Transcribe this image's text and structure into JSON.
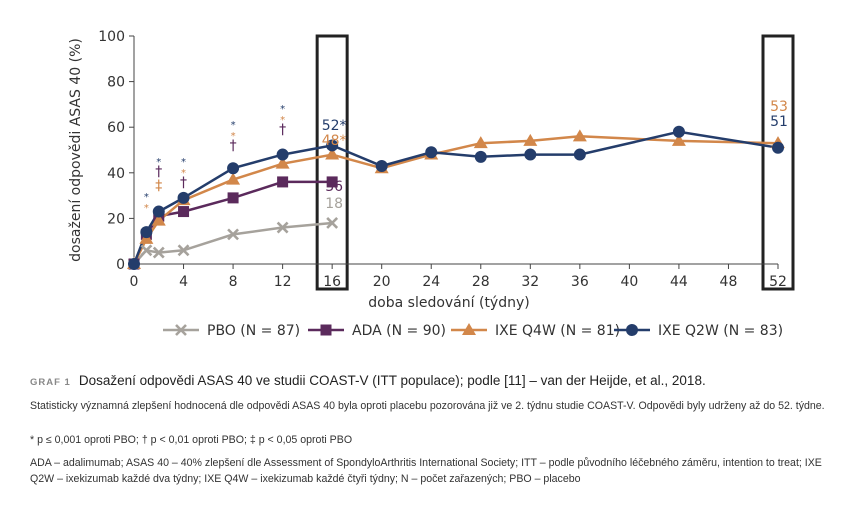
{
  "chart_data": {
    "type": "line",
    "ylabel": "dosažení odpovědi ASAS 40 (%)",
    "xlabel": "doba sledování (týdny)",
    "ylim": [
      0,
      100
    ],
    "yticks": [
      0,
      20,
      40,
      60,
      80,
      100
    ],
    "xticks": [
      0,
      4,
      8,
      12,
      16,
      20,
      24,
      28,
      32,
      36,
      40,
      44,
      48,
      52
    ],
    "grid": false,
    "legend_position": "bottom",
    "highlight_weeks": [
      16,
      52
    ],
    "series": [
      {
        "name": "PBO (N = 87)",
        "color": "#a6a29c",
        "marker": "x",
        "x": [
          0,
          1,
          2,
          4,
          8,
          12,
          16
        ],
        "y": [
          0,
          6,
          5,
          6,
          13,
          16,
          18
        ]
      },
      {
        "name": "ADA (N = 90)",
        "color": "#5b2a5c",
        "marker": "square",
        "x": [
          0,
          1,
          2,
          4,
          8,
          12,
          16
        ],
        "y": [
          0,
          13,
          21,
          23,
          29,
          36,
          36
        ]
      },
      {
        "name": "IXE Q4W (N = 81)",
        "color": "#d2874a",
        "marker": "triangle",
        "x": [
          0,
          1,
          2,
          4,
          8,
          12,
          16,
          20,
          24,
          28,
          32,
          36,
          44,
          52
        ],
        "y": [
          0,
          11,
          19,
          28,
          37,
          44,
          48,
          42,
          48,
          53,
          54,
          56,
          54,
          53
        ]
      },
      {
        "name": "IXE Q2W (N = 83)",
        "color": "#243d6b",
        "marker": "circle",
        "x": [
          0,
          1,
          2,
          4,
          8,
          12,
          16,
          20,
          24,
          28,
          32,
          36,
          44,
          52
        ],
        "y": [
          0,
          14,
          23,
          29,
          42,
          48,
          52,
          43,
          49,
          47,
          48,
          48,
          58,
          51
        ]
      }
    ],
    "data_labels": [
      {
        "text": "52*",
        "x": 16,
        "y": 52,
        "color": "#243d6b"
      },
      {
        "text": "48*",
        "x": 16,
        "y": 48,
        "color": "#d2874a"
      },
      {
        "text": "36",
        "x": 16,
        "y": 36,
        "color": "#5b2a5c"
      },
      {
        "text": "18",
        "x": 16,
        "y": 18,
        "color": "#a6a29c"
      },
      {
        "text": "53",
        "x": 52,
        "y": 53,
        "color": "#d2874a"
      },
      {
        "text": "51",
        "x": 52,
        "y": 51,
        "color": "#243d6b"
      }
    ],
    "significance_markers": [
      {
        "x": 1,
        "symbols": [
          {
            "s": "*",
            "c": "#243d6b"
          },
          {
            "s": "*",
            "c": "#d2874a"
          }
        ]
      },
      {
        "x": 2,
        "symbols": [
          {
            "s": "*",
            "c": "#243d6b"
          },
          {
            "s": "†",
            "c": "#5b2a5c"
          },
          {
            "s": "‡",
            "c": "#d2874a"
          }
        ]
      },
      {
        "x": 4,
        "symbols": [
          {
            "s": "*",
            "c": "#243d6b"
          },
          {
            "s": "*",
            "c": "#d2874a"
          },
          {
            "s": "†",
            "c": "#5b2a5c"
          }
        ]
      },
      {
        "x": 8,
        "symbols": [
          {
            "s": "*",
            "c": "#243d6b"
          },
          {
            "s": "*",
            "c": "#d2874a"
          },
          {
            "s": "†",
            "c": "#5b2a5c"
          }
        ]
      },
      {
        "x": 12,
        "symbols": [
          {
            "s": "*",
            "c": "#243d6b"
          },
          {
            "s": "*",
            "c": "#d2874a"
          },
          {
            "s": "†",
            "c": "#5b2a5c"
          }
        ]
      }
    ]
  },
  "caption": {
    "label": "GRAF 1",
    "title": "Dosažení odpovědi ASAS 40 ve studii COAST-V (ITT populace); podle [11] – van der Heijde, et al., 2018.",
    "description": "Statisticky významná zlepšení hodnocená dle odpovědi ASAS 40 byla oproti placebu pozorována již ve 2. týdnu studie COAST-V. Odpovědi byly udrženy až do 52. týdne.",
    "significance": "* p ≤ 0,001 oproti PBO; † p < 0,01 oproti PBO; ‡ p < 0,05 oproti PBO",
    "abbreviations": "ADA – adalimumab; ASAS 40 – 40% zlepšení dle Assessment of SpondyloArthritis International Society; ITT – podle původního léčebného záměru, intention to treat; IXE Q2W – ixekizumab každé dva týdny; IXE Q4W – ixekizumab každé čtyři týdny; N – počet zařazených; PBO – placebo"
  }
}
